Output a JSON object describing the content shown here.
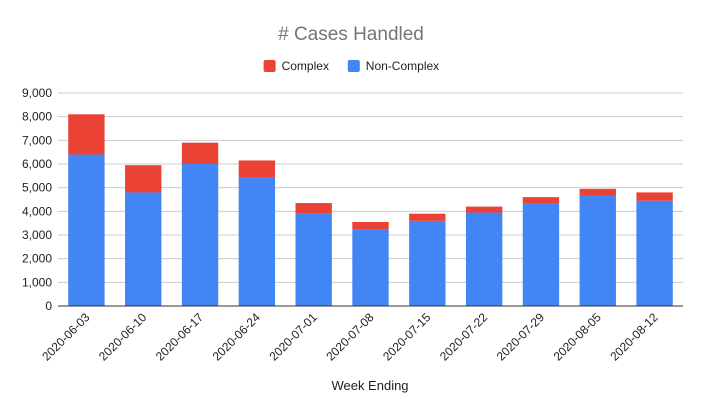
{
  "chart_data": {
    "type": "bar",
    "stacked": true,
    "title": "# Cases Handled",
    "xlabel": "Week Ending",
    "ylabel": "",
    "ylim": [
      0,
      9000
    ],
    "yticks": [
      "0",
      "1,000",
      "2,000",
      "3,000",
      "4,000",
      "5,000",
      "6,000",
      "7,000",
      "8,000",
      "9,000"
    ],
    "ytick_values": [
      0,
      1000,
      2000,
      3000,
      4000,
      5000,
      6000,
      7000,
      8000,
      9000
    ],
    "grid": true,
    "legend_position": "top",
    "categories": [
      "2020-06-03",
      "2020-06-10",
      "2020-06-17",
      "2020-06-24",
      "2020-07-01",
      "2020-07-08",
      "2020-07-15",
      "2020-07-22",
      "2020-07-29",
      "2020-08-05",
      "2020-08-12"
    ],
    "series": [
      {
        "name": "Non-Complex",
        "color": "#4285f4",
        "values": [
          6400,
          4800,
          6000,
          5450,
          3900,
          3250,
          3600,
          3950,
          4350,
          4650,
          4450
        ]
      },
      {
        "name": "Complex",
        "color": "#ea4335",
        "values": [
          1700,
          1150,
          900,
          700,
          450,
          300,
          300,
          250,
          250,
          300,
          350
        ]
      }
    ],
    "legend_order": [
      "Complex",
      "Non-Complex"
    ]
  }
}
